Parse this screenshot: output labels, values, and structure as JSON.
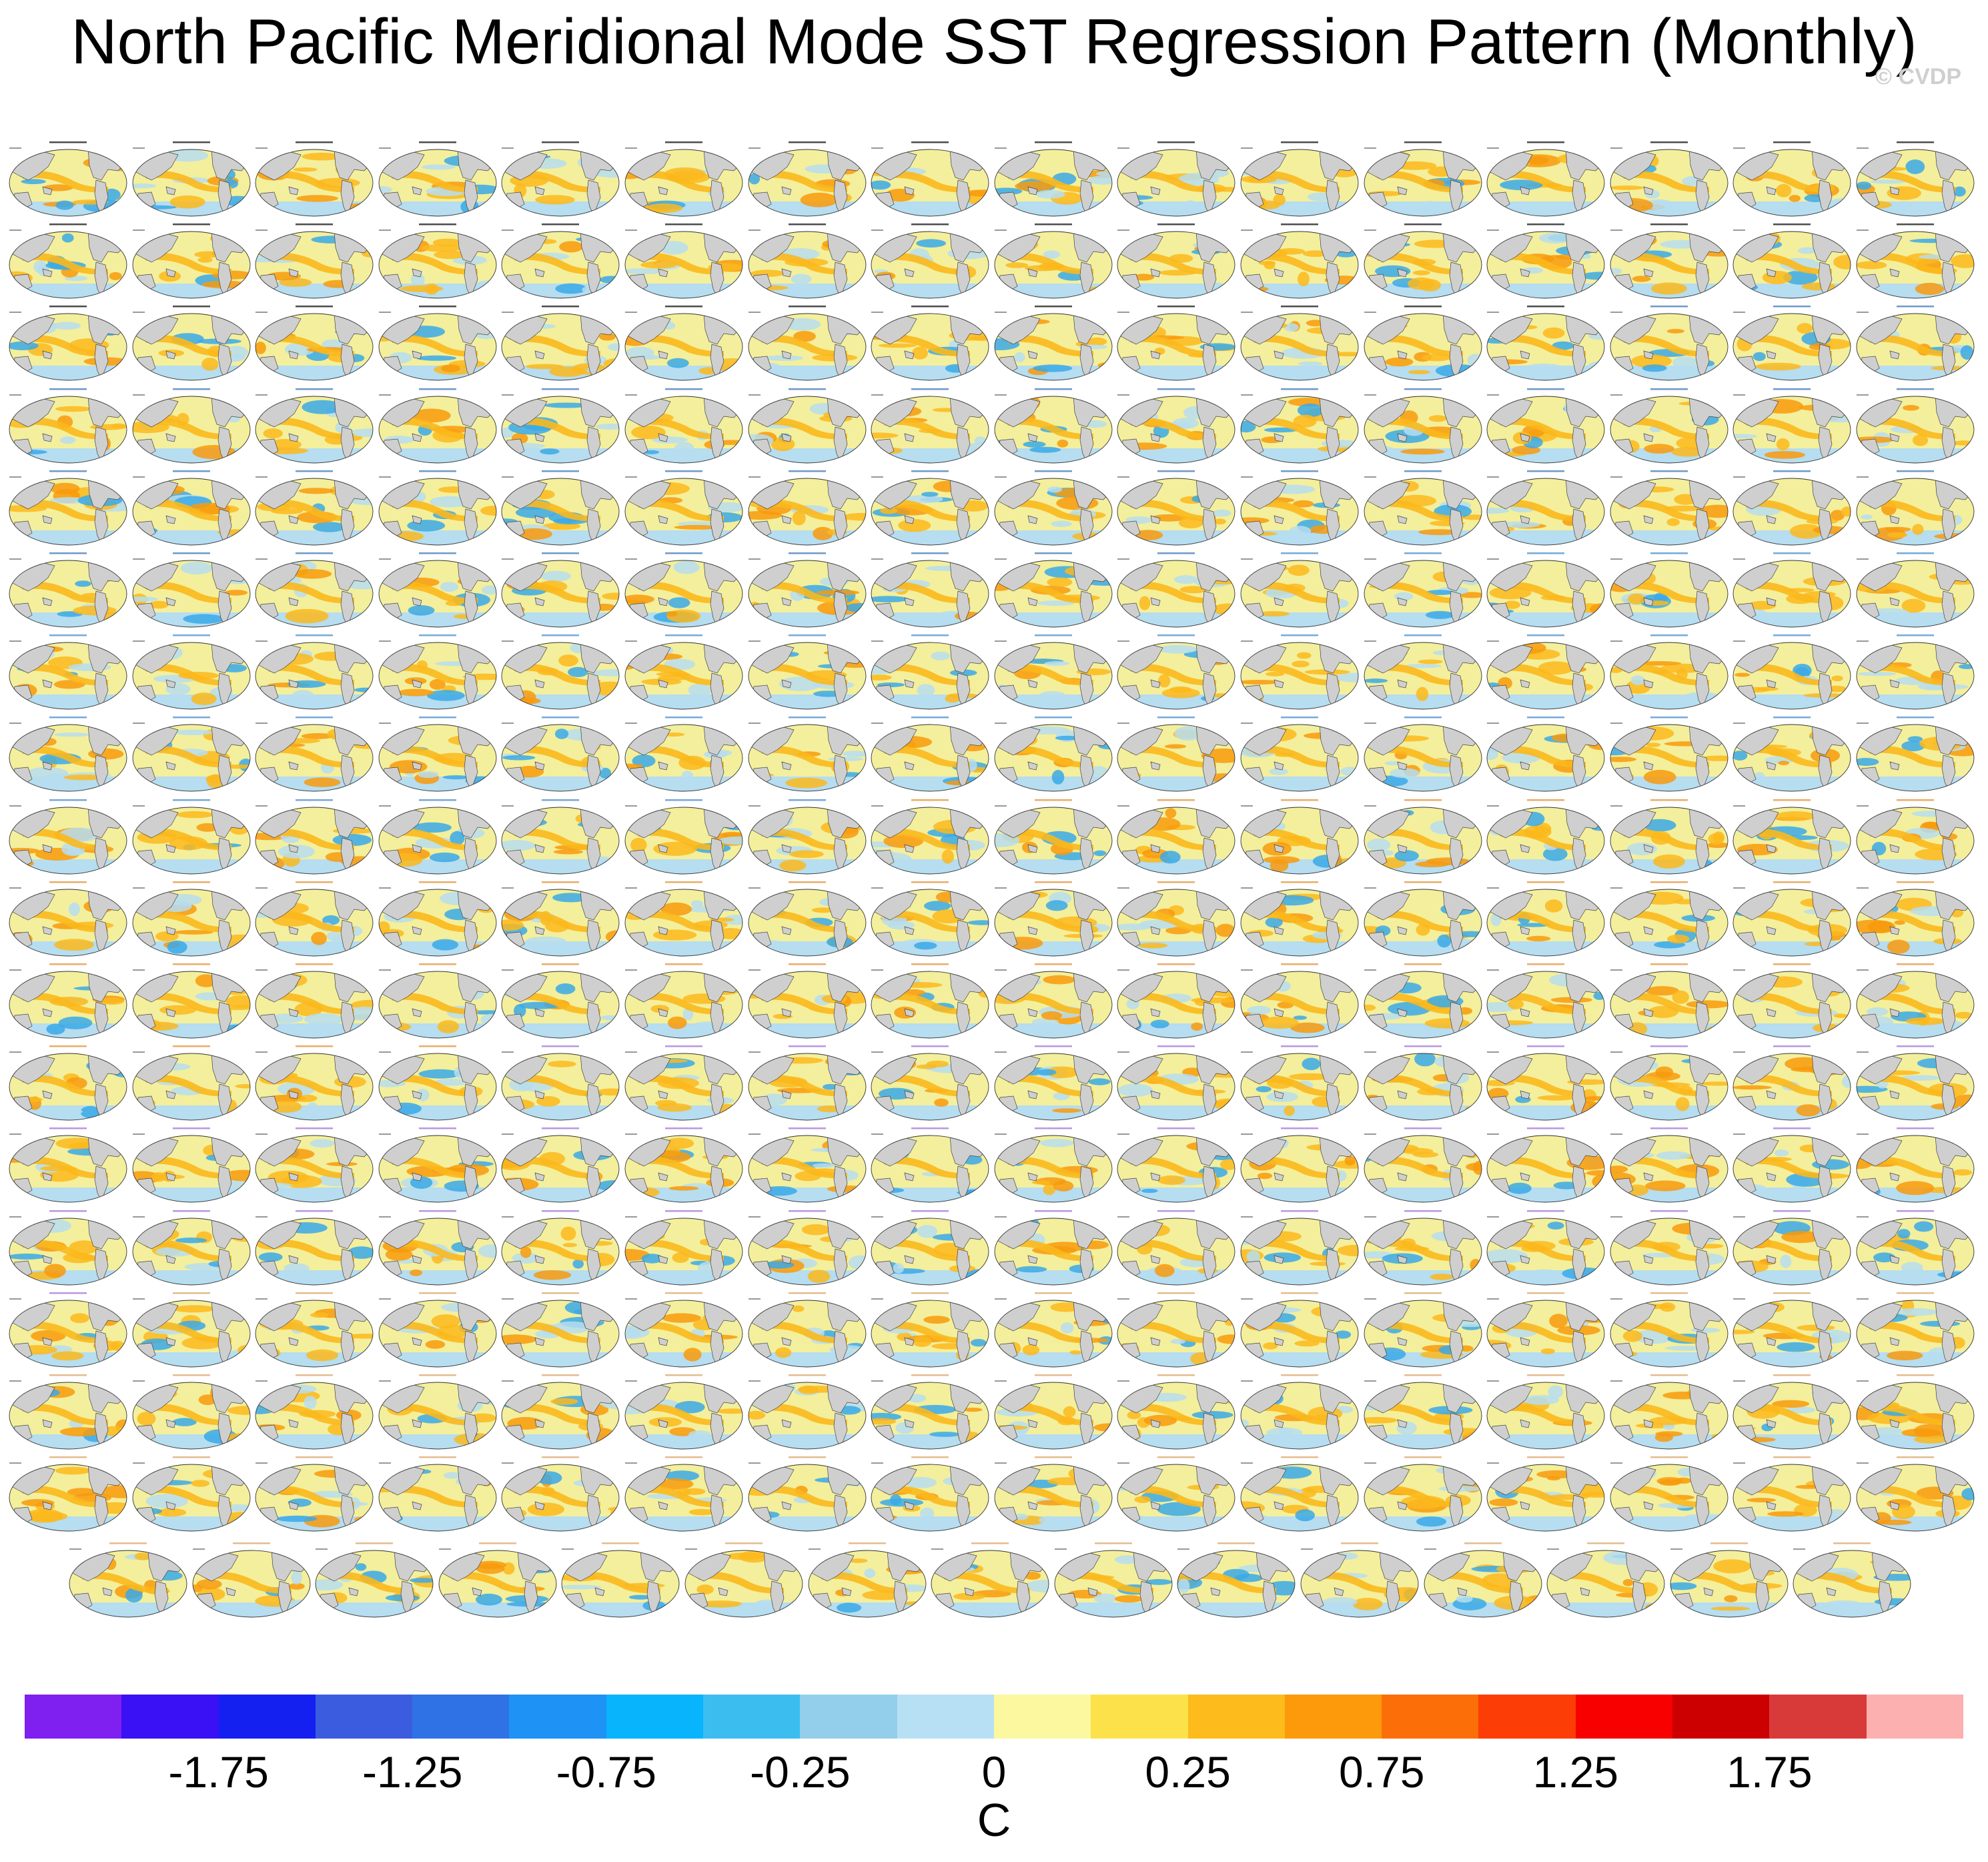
{
  "title": "North Pacific Meridional Mode SST Regression Pattern (Monthly)",
  "copyright": "© CVDP",
  "panels": {
    "full_row_count": 17,
    "columns": 16,
    "last_row_count": 15,
    "map_colors": {
      "ocean_base": "#f3ef9c",
      "land": "#cfcfcf",
      "warm": "#fbb81c",
      "warm_strong": "#f89a0c",
      "cool": "#b6ddf0",
      "cool_strong": "#3aa9e8"
    },
    "label_colors": [
      "#000000",
      "#2f6fb0",
      "#3a86c8",
      "#e08a2a",
      "#9b6bd6",
      "#d8a060"
    ]
  },
  "colorbar": {
    "colors": [
      "#7f1ff0",
      "#3a10f5",
      "#1420f0",
      "#3c5ce0",
      "#2f72e6",
      "#1e92f5",
      "#08b4fb",
      "#3cbdf0",
      "#93cfea",
      "#b8e0f4",
      "#fbf8a0",
      "#fde14a",
      "#fdbb1c",
      "#fc9a0c",
      "#fc6f08",
      "#fc3d06",
      "#f80000",
      "#cc0000",
      "#d83a3a",
      "#fcb0b0"
    ],
    "tick_labels": [
      "-1.75",
      "-1.25",
      "-0.75",
      "-0.25",
      "0",
      "0.25",
      "0.75",
      "1.25",
      "1.75"
    ],
    "unit": "C"
  }
}
